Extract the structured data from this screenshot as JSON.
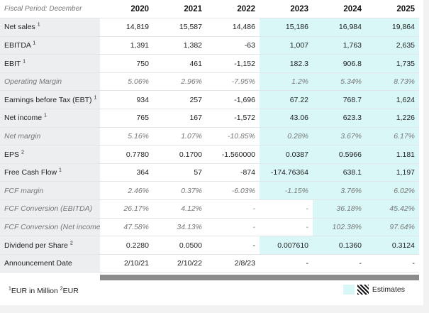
{
  "header": {
    "period_label": "Fiscal Period: December",
    "years": [
      "2020",
      "2021",
      "2022",
      "2023",
      "2024",
      "2025"
    ]
  },
  "rows": [
    {
      "label": "Net sales",
      "sup": "1",
      "italic": false,
      "values": [
        "14,819",
        "15,587",
        "14,486",
        "15,186",
        "16,984",
        "19,864"
      ],
      "est_from": 3
    },
    {
      "label": "EBITDA",
      "sup": "1",
      "italic": false,
      "values": [
        "1,391",
        "1,382",
        "-63",
        "1,007",
        "1,763",
        "2,635"
      ],
      "est_from": 3
    },
    {
      "label": "EBIT",
      "sup": "1",
      "italic": false,
      "values": [
        "750",
        "461",
        "-1,152",
        "182.3",
        "906.8",
        "1,735"
      ],
      "est_from": 3
    },
    {
      "label": "Operating Margin",
      "sup": "",
      "italic": true,
      "values": [
        "5.06%",
        "2.96%",
        "-7.95%",
        "1.2%",
        "5.34%",
        "8.73%"
      ],
      "est_from": 3
    },
    {
      "label": "Earnings before Tax (EBT)",
      "sup": "1",
      "italic": false,
      "values": [
        "934",
        "257",
        "-1,696",
        "67.22",
        "768.7",
        "1,624"
      ],
      "est_from": 3
    },
    {
      "label": "Net income",
      "sup": "1",
      "italic": false,
      "values": [
        "765",
        "167",
        "-1,572",
        "43.06",
        "623.3",
        "1,226"
      ],
      "est_from": 3
    },
    {
      "label": "Net margin",
      "sup": "",
      "italic": true,
      "values": [
        "5.16%",
        "1.07%",
        "-10.85%",
        "0.28%",
        "3.67%",
        "6.17%"
      ],
      "est_from": 3
    },
    {
      "label": "EPS",
      "sup": "2",
      "italic": false,
      "values": [
        "0.7780",
        "0.1700",
        "-1.560000",
        "0.0387",
        "0.5966",
        "1.181"
      ],
      "est_from": 3
    },
    {
      "label": "Free Cash Flow",
      "sup": "1",
      "italic": false,
      "values": [
        "364",
        "57",
        "-874",
        "-174.76364",
        "638.1",
        "1,197"
      ],
      "est_from": 3
    },
    {
      "label": "FCF margin",
      "sup": "",
      "italic": true,
      "values": [
        "2.46%",
        "0.37%",
        "-6.03%",
        "-1.15%",
        "3.76%",
        "6.02%"
      ],
      "est_from": 3
    },
    {
      "label": "FCF Conversion (EBITDA)",
      "sup": "",
      "italic": true,
      "values": [
        "26.17%",
        "4.12%",
        "-",
        "-",
        "36.18%",
        "45.42%"
      ],
      "est_from": 4
    },
    {
      "label": "FCF Conversion (Net income)",
      "sup": "",
      "italic": true,
      "values": [
        "47.58%",
        "34.13%",
        "-",
        "-",
        "102.38%",
        "97.64%"
      ],
      "est_from": 4
    },
    {
      "label": "Dividend per Share",
      "sup": "2",
      "italic": false,
      "values": [
        "0.2280",
        "0.0500",
        "-",
        "0.007610",
        "0.1360",
        "0.3124"
      ],
      "est_from": 3
    },
    {
      "label": "Announcement Date",
      "sup": "",
      "italic": false,
      "values": [
        "2/10/21",
        "2/10/22",
        "2/8/23",
        "-",
        "-",
        "-"
      ],
      "est_from": 6
    }
  ],
  "footnote": {
    "sup1": "1",
    "text1": "EUR in Million ",
    "sup2": "2",
    "text2": "EUR"
  },
  "legend": {
    "estimates_label": "Estimates"
  },
  "colors": {
    "estimate_bg": "#d9f7f7",
    "label_bg": "#eceef0"
  }
}
